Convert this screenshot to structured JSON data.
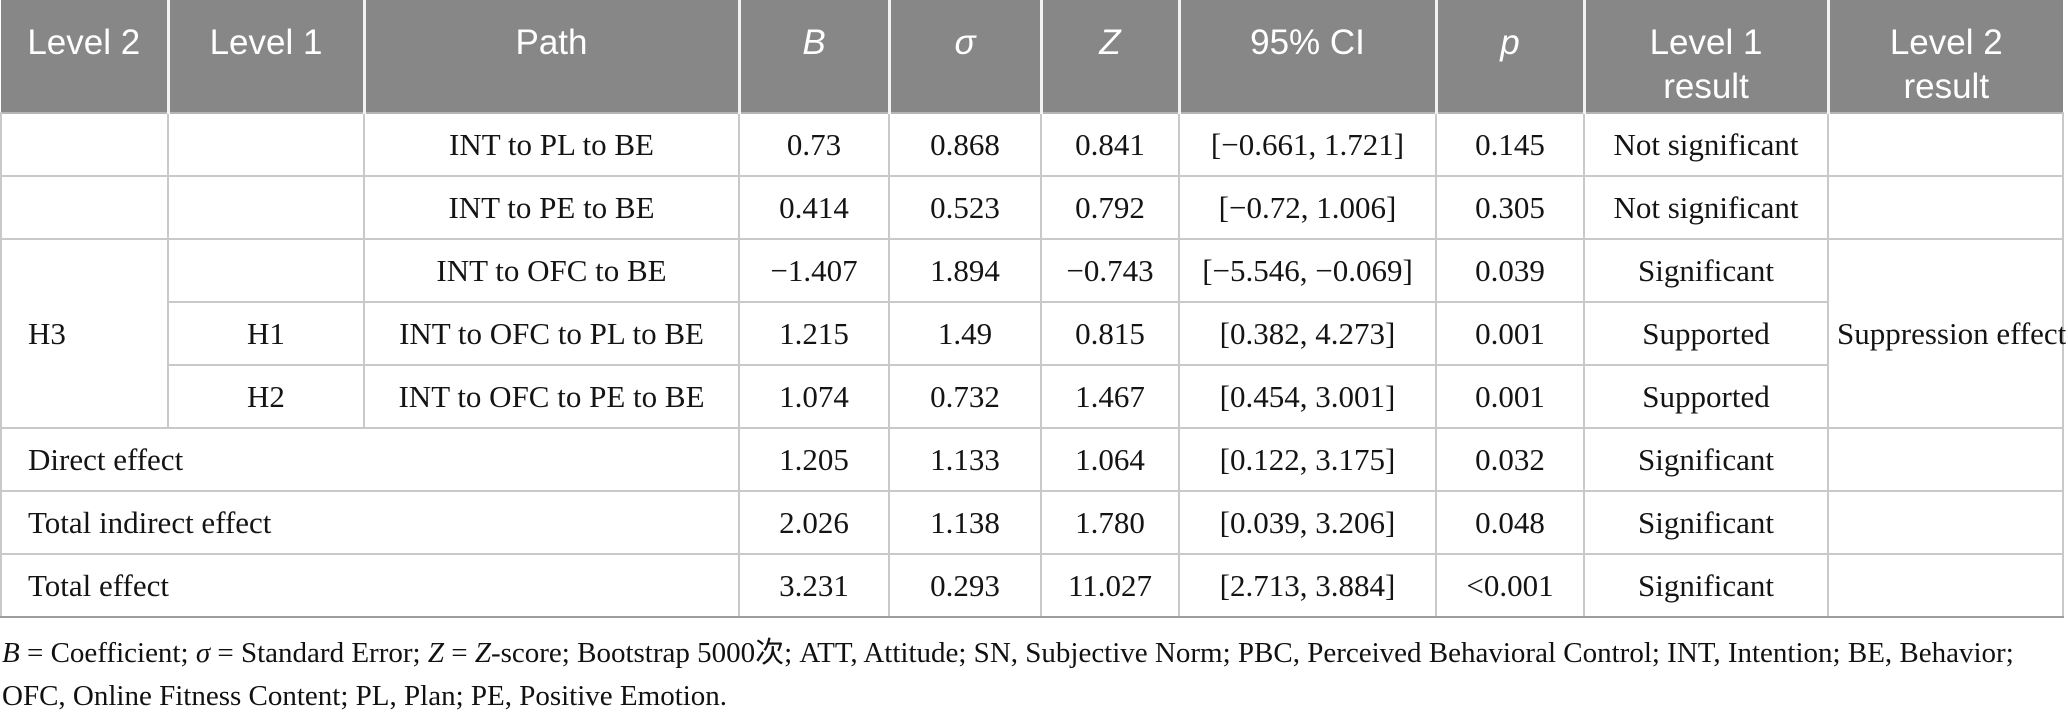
{
  "table": {
    "header": {
      "level2": "Level 2",
      "level1": "Level 1",
      "path": "Path",
      "b": "B",
      "sigma": "σ",
      "z": "Z",
      "ci": "95% CI",
      "p": "p",
      "result1": "Level 1\nresult",
      "result2": "Level 2\nresult"
    },
    "rows": [
      {
        "level2": "",
        "level1": "",
        "path": "INT to PL to BE",
        "b": "0.73",
        "sigma": "0.868",
        "z": "0.841",
        "ci": "[−0.661, 1.721]",
        "p": "0.145",
        "result1": "Not significant",
        "result2": ""
      },
      {
        "level2": "",
        "level1": "",
        "path": "INT to PE to BE",
        "b": "0.414",
        "sigma": "0.523",
        "z": "0.792",
        "ci": "[−0.72, 1.006]",
        "p": "0.305",
        "result1": "Not significant",
        "result2": ""
      },
      {
        "level2": "H3",
        "level1": "",
        "path": "INT to OFC to BE",
        "b": "−1.407",
        "sigma": "1.894",
        "z": "−0.743",
        "ci": "[−5.546, −0.069]",
        "p": "0.039",
        "result1": "Significant",
        "result2": "Suppression effect"
      },
      {
        "level1": "H1",
        "path": "INT to OFC to PL to BE",
        "b": "1.215",
        "sigma": "1.49",
        "z": "0.815",
        "ci": "[0.382, 4.273]",
        "p": "0.001",
        "result1": "Supported"
      },
      {
        "level1": "H2",
        "path": "INT to OFC to PE to BE",
        "b": "1.074",
        "sigma": "0.732",
        "z": "1.467",
        "ci": "[0.454, 3.001]",
        "p": "0.001",
        "result1": "Supported"
      },
      {
        "label": "Direct effect",
        "b": "1.205",
        "sigma": "1.133",
        "z": "1.064",
        "ci": "[0.122, 3.175]",
        "p": "0.032",
        "result1": "Significant",
        "result2": ""
      },
      {
        "label": "Total indirect effect",
        "b": "2.026",
        "sigma": "1.138",
        "z": "1.780",
        "ci": "[0.039, 3.206]",
        "p": "0.048",
        "result1": "Significant",
        "result2": ""
      },
      {
        "label": "Total effect",
        "b": "3.231",
        "sigma": "0.293",
        "z": "11.027",
        "ci": "[2.713, 3.884]",
        "p": "<0.001",
        "result1": "Significant",
        "result2": ""
      }
    ]
  },
  "footnote": {
    "segments": [
      {
        "text": "B",
        "italic": true
      },
      {
        "text": " = Coefficient; ",
        "italic": false
      },
      {
        "text": "σ",
        "italic": true
      },
      {
        "text": " = Standard Error; ",
        "italic": false
      },
      {
        "text": "Z",
        "italic": true
      },
      {
        "text": " = ",
        "italic": false
      },
      {
        "text": "Z",
        "italic": true
      },
      {
        "text": "-score; Bootstrap 5000次; ATT, Attitude; SN, Subjective Norm; PBC, Perceived Behavioral Control; INT, Intention; BE, Behavior; OFC, Online Fitness Content; PL, Plan; PE, Positive Emotion.",
        "italic": false
      }
    ]
  },
  "colors": {
    "header_bg": "#878787",
    "header_text": "#ffffff",
    "grid_line": "#c9c9c9",
    "body_text": "#141414"
  }
}
